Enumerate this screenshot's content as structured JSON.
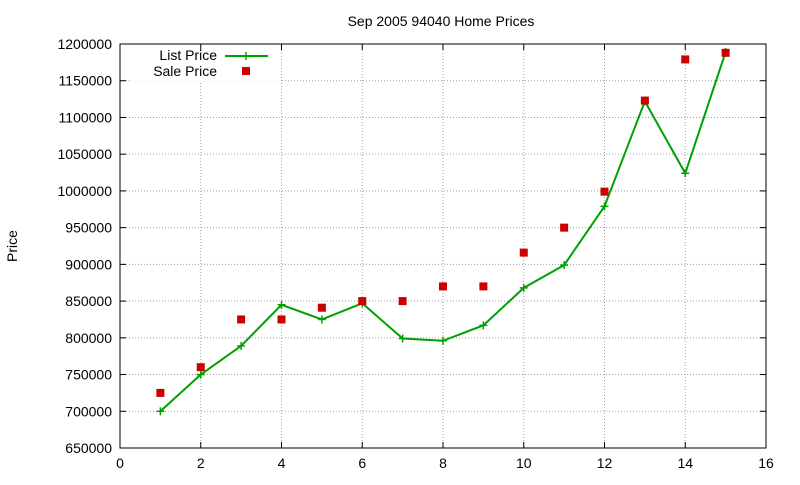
{
  "chart_data": {
    "type": "line",
    "title": "Sep 2005 94040 Home Prices",
    "xlabel": "",
    "ylabel": "Price",
    "xlim": [
      0,
      16
    ],
    "ylim": [
      650000,
      1200000
    ],
    "xticks": [
      0,
      2,
      4,
      6,
      8,
      10,
      12,
      14,
      16
    ],
    "yticks": [
      650000,
      700000,
      750000,
      800000,
      850000,
      900000,
      950000,
      1000000,
      1050000,
      1100000,
      1150000,
      1200000
    ],
    "grid": true,
    "legend_position": "top-left",
    "x": [
      1,
      2,
      3,
      4,
      5,
      6,
      7,
      8,
      9,
      10,
      11,
      12,
      13,
      14,
      15
    ],
    "series": [
      {
        "name": "List Price",
        "style": "linespoints",
        "color": "#00a000",
        "values": [
          700000,
          750000,
          789000,
          845000,
          825000,
          847000,
          799000,
          796000,
          817000,
          868000,
          899000,
          979000,
          1122000,
          1024000,
          1189000
        ]
      },
      {
        "name": "Sale Price",
        "style": "points",
        "color": "#cc0000",
        "values": [
          725000,
          760000,
          825000,
          825000,
          841000,
          850000,
          850000,
          870000,
          870000,
          916000,
          950000,
          999000,
          1123000,
          1179000,
          1188000
        ]
      }
    ]
  }
}
